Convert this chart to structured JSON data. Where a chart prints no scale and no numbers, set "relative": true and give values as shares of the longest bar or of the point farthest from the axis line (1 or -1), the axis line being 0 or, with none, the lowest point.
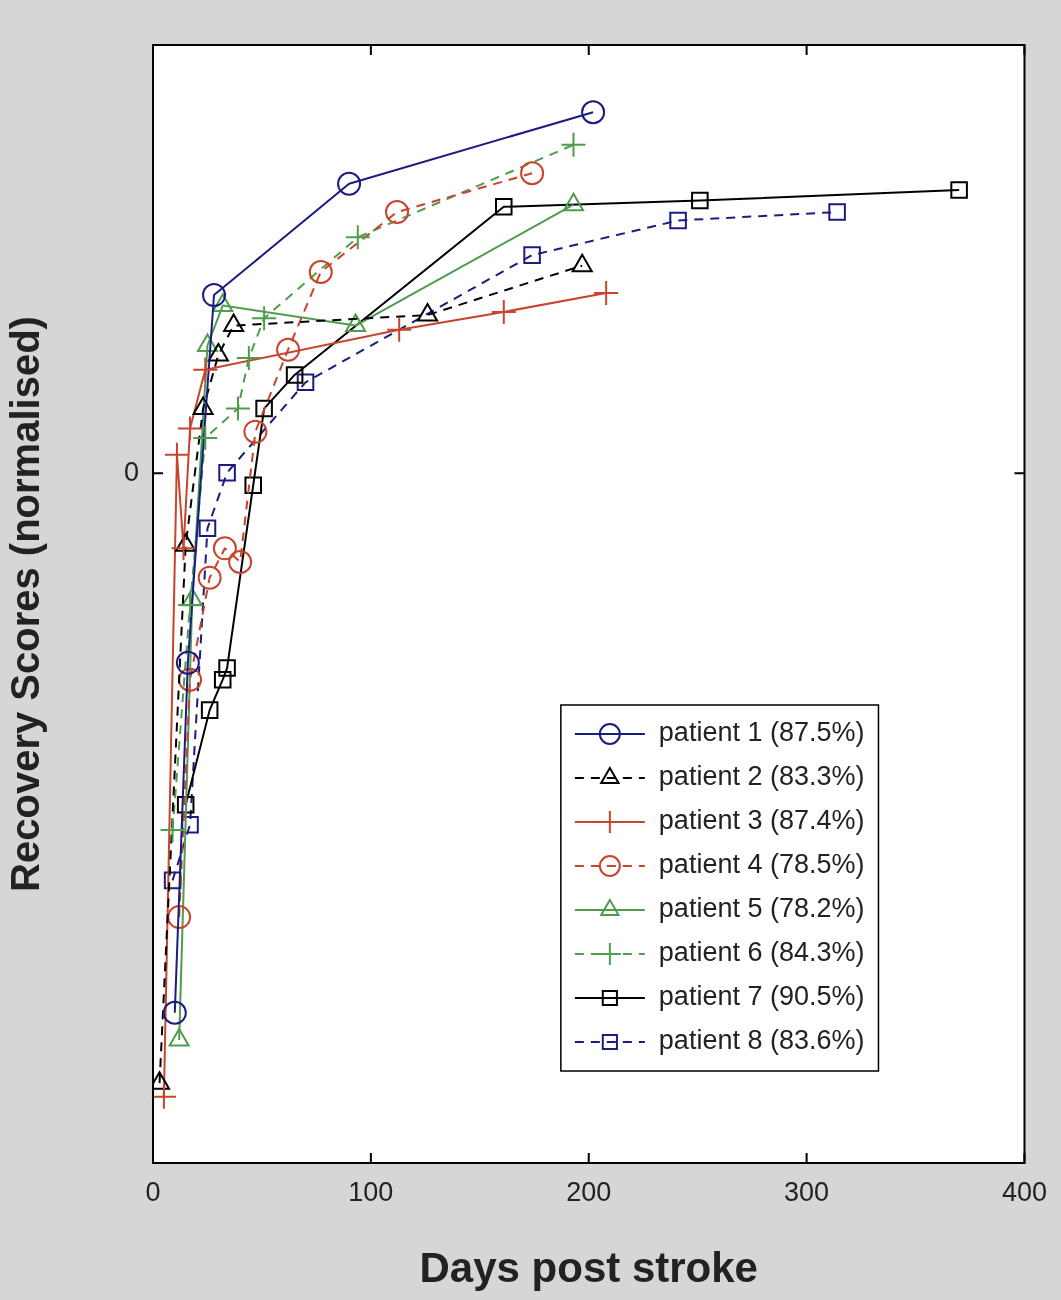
{
  "chart_data": {
    "type": "line",
    "xlabel": "Days post stroke",
    "ylabel": "Recovery Scores (normalised)",
    "relative": true,
    "xlim": [
      0,
      400
    ],
    "xticks": [
      0,
      100,
      200,
      300,
      400
    ],
    "annotations": [
      "0"
    ],
    "grid": false,
    "legend": "bottom right",
    "series": [
      {
        "name": "patient 1 (87.5%)",
        "color": "#1c1c80",
        "marker": "circle",
        "line_style": "solid",
        "x": [
          10,
          16,
          28,
          90,
          202
        ],
        "values": [
          0.143,
          0.476,
          0.826,
          0.932,
          1.0
        ]
      },
      {
        "name": "patient 2 (83.3%)",
        "color": "#000000",
        "marker": "triangle",
        "line_style": "dashed",
        "x": [
          3,
          15,
          23,
          30,
          37,
          126,
          197
        ],
        "values": [
          0.076,
          0.588,
          0.718,
          0.769,
          0.797,
          0.807,
          0.854
        ]
      },
      {
        "name": "patient 3 (87.4%)",
        "color": "#c8442a",
        "marker": "cross",
        "line_style": "solid",
        "x": [
          5,
          11,
          14,
          17,
          24,
          113,
          161,
          208
        ],
        "values": [
          0.063,
          0.674,
          0.585,
          0.699,
          0.755,
          0.793,
          0.81,
          0.828
        ]
      },
      {
        "name": "patient 4 (78.5%)",
        "color": "#c8442a",
        "marker": "circle",
        "line_style": "dashed",
        "x": [
          12,
          17,
          26,
          33,
          40,
          47,
          62,
          77,
          112,
          174
        ],
        "values": [
          0.234,
          0.46,
          0.557,
          0.585,
          0.572,
          0.696,
          0.774,
          0.848,
          0.905,
          0.942
        ]
      },
      {
        "name": "patient 5 (78.2%)",
        "color": "#4f9c4f",
        "marker": "triangle",
        "line_style": "solid",
        "x": [
          12,
          18,
          25,
          32,
          93,
          193
        ],
        "values": [
          0.117,
          0.536,
          0.778,
          0.816,
          0.797,
          0.912
        ]
      },
      {
        "name": "patient 6 (84.3%)",
        "color": "#4f9c4f",
        "marker": "cross",
        "line_style": "dashed",
        "x": [
          9,
          17,
          24,
          39,
          44,
          51,
          94,
          193
        ],
        "values": [
          0.317,
          0.531,
          0.69,
          0.718,
          0.766,
          0.804,
          0.881,
          0.969
        ]
      },
      {
        "name": "patient 7 (90.5%)",
        "color": "#000000",
        "marker": "square",
        "line_style": "solid",
        "x": [
          15,
          26,
          32,
          34,
          46,
          51,
          65,
          161,
          251,
          370
        ],
        "values": [
          0.341,
          0.431,
          0.46,
          0.471,
          0.645,
          0.718,
          0.75,
          0.91,
          0.916,
          0.926
        ]
      },
      {
        "name": "patient 8 (83.6%)",
        "color": "#1c1c80",
        "marker": "square",
        "line_style": "dashed",
        "x": [
          9,
          17,
          25,
          34,
          70,
          174,
          241,
          314
        ],
        "values": [
          0.269,
          0.322,
          0.604,
          0.657,
          0.743,
          0.864,
          0.897,
          0.905
        ]
      }
    ]
  }
}
